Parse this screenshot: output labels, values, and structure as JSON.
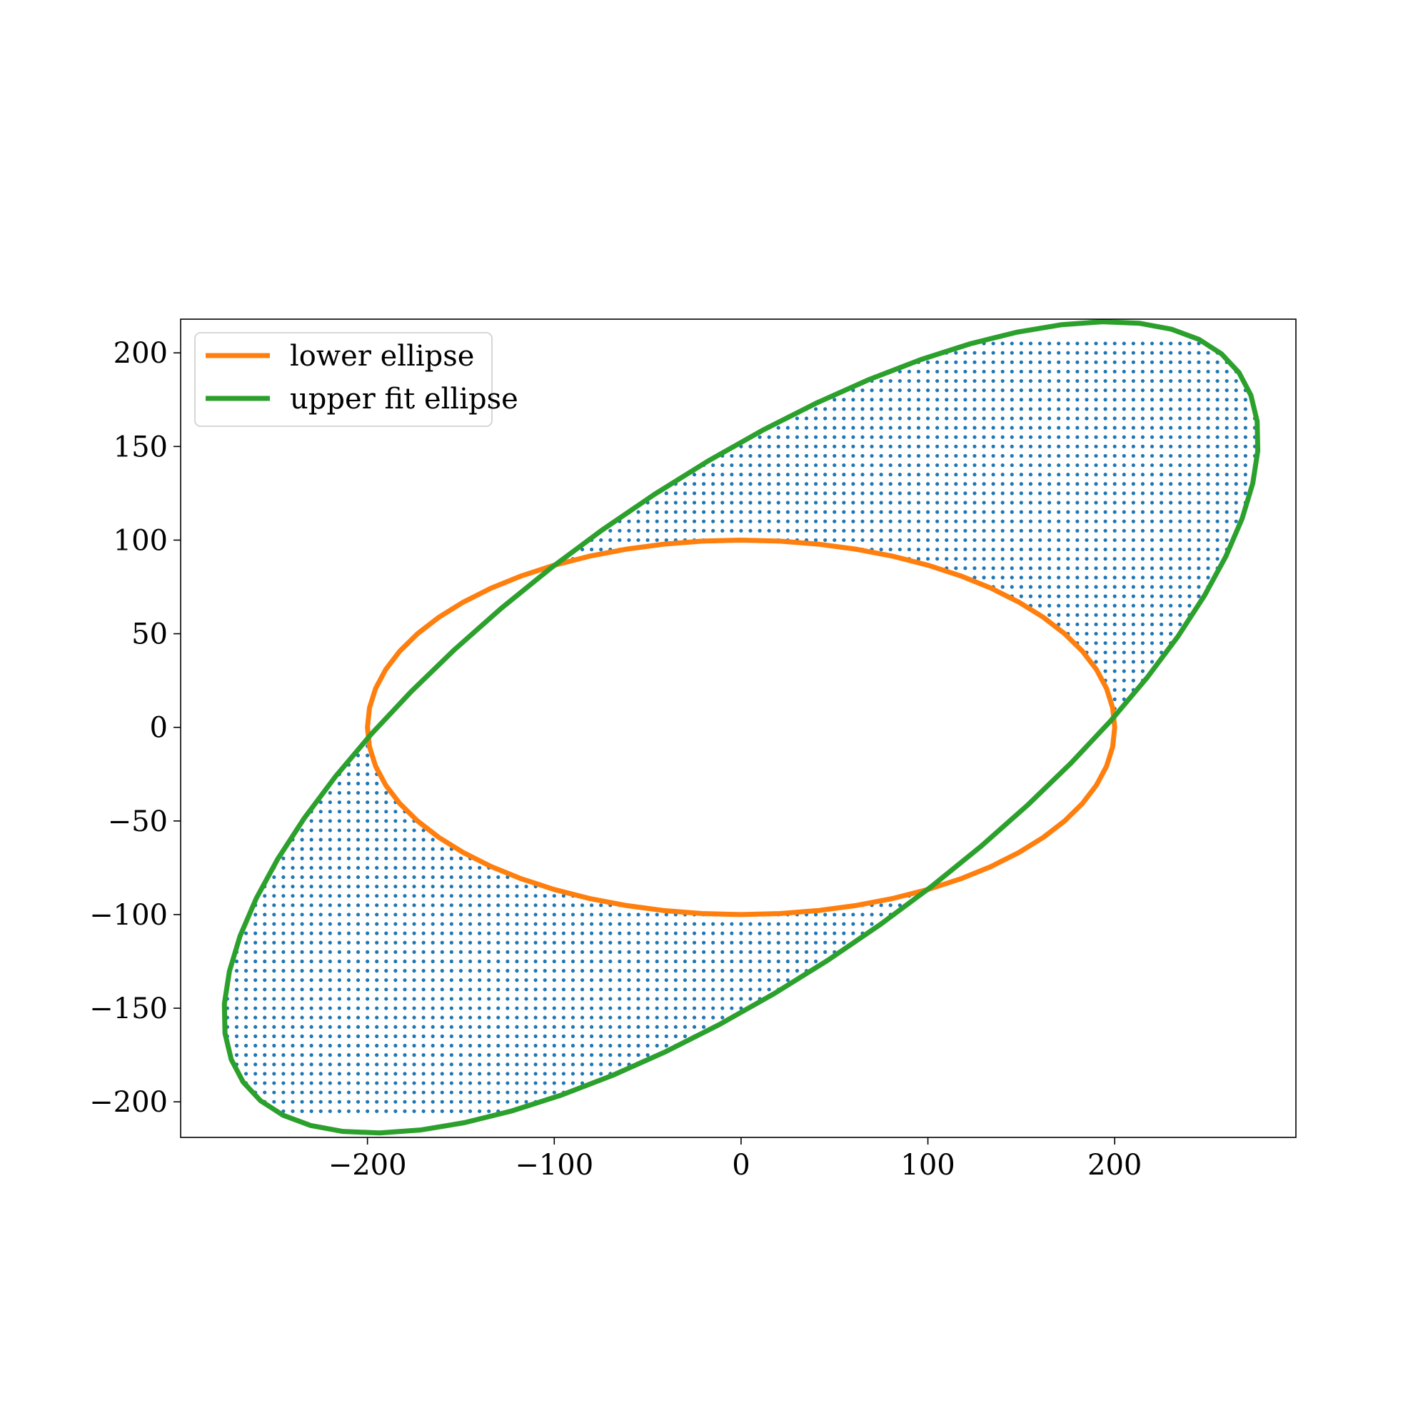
{
  "chart_data": {
    "type": "scatter",
    "title": "",
    "xlabel": "",
    "ylabel": "",
    "xlim": [
      -300,
      297
    ],
    "ylim": [
      -219,
      218
    ],
    "x_ticks": [
      -200,
      -100,
      0,
      100,
      200
    ],
    "y_ticks": [
      -200,
      -150,
      -100,
      -50,
      0,
      50,
      100,
      150,
      200
    ],
    "x_tick_labels": [
      "−200",
      "−100",
      "0",
      "100",
      "200"
    ],
    "y_tick_labels": [
      "−200",
      "−150",
      "−100",
      "−50",
      "0",
      "50",
      "100",
      "150",
      "200"
    ],
    "grid": false,
    "legend_position": "top-left",
    "series": [
      {
        "name": "lower ellipse",
        "kind": "ellipse",
        "center": [
          0,
          0
        ],
        "semi_axes": [
          200,
          100
        ],
        "rotation_deg": 0,
        "color": "#ff7f0e"
      },
      {
        "name": "upper fit ellipse",
        "kind": "ellipse",
        "center": [
          0,
          0
        ],
        "semi_axes": [
          327,
          129
        ],
        "rotation_deg": 35.4,
        "color": "#2ca02c"
      },
      {
        "kind": "scatter-fill",
        "description_region": "points on a lattice between lower ellipse and upper fit ellipse",
        "lattice_step": [
          5,
          5
        ],
        "color": "#1f77b4"
      }
    ]
  }
}
